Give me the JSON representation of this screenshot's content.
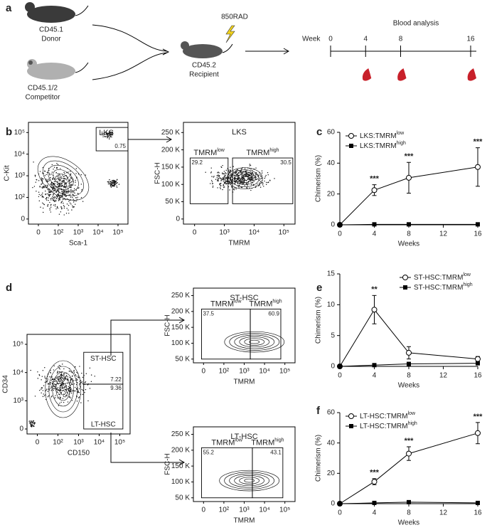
{
  "figure": {
    "panel_labels": [
      "a",
      "b",
      "c",
      "d",
      "e",
      "f"
    ],
    "schematic": {
      "donor": "CD45.1",
      "donor_role": "Donor",
      "competitor": "CD45.1/2",
      "competitor_role": "Competitor",
      "dose": "850RAD",
      "recipient": "CD45.2",
      "recipient_role": "Recipient",
      "timeline_title": "Blood analysis",
      "timeline_unit": "Week",
      "timeline_weeks": [
        0,
        4,
        8,
        16
      ]
    },
    "flow_plots": [
      {
        "x_label": "Sca-1",
        "y_label": "C-Kit",
        "xticks": [
          "0",
          "10²",
          "10³",
          "10⁴",
          "10⁵"
        ],
        "yticks": [
          "0",
          "10²",
          "10³",
          "10⁴",
          "10⁵"
        ],
        "gates": [
          {
            "name": "LKS",
            "value": 0.75
          }
        ]
      },
      {
        "title": "LKS",
        "x_label": "TMRM",
        "y_label": "FSC-H",
        "xticks": [
          "0",
          "10³",
          "10⁴",
          "10⁵"
        ],
        "yticks": [
          "0",
          "50 K",
          "100 K",
          "150 K",
          "200 K",
          "250 K"
        ],
        "gates": [
          {
            "name": "TMRM",
            "name_superscript": "low",
            "value": 29.2
          },
          {
            "name": "TMRM",
            "name_superscript": "high",
            "value": 30.5
          }
        ]
      },
      {
        "x_label": "CD150",
        "y_label": "CD34",
        "xticks": [
          "0",
          "10²",
          "10³",
          "10⁴",
          "10⁵"
        ],
        "yticks": [
          "0",
          "10³",
          "10⁴",
          "10⁵"
        ],
        "gates": [
          {
            "name": "ST-HSC",
            "value": 7.22
          },
          {
            "name": "LT-HSC",
            "value": 9.36
          }
        ]
      },
      {
        "title": "ST-HSC",
        "x_label": "TMRM",
        "y_label": "FSC-H",
        "xticks": [
          "0",
          "10²",
          "10³",
          "10⁴",
          "10⁵"
        ],
        "yticks": [
          "50 K",
          "100 K",
          "150 K",
          "200 K",
          "250 K"
        ],
        "gates": [
          {
            "name": "TMRM",
            "name_superscript": "low",
            "value": 37.5
          },
          {
            "name": "TMRM",
            "name_superscript": "high",
            "value": 60.9
          }
        ]
      },
      {
        "title": "LT-HSC",
        "x_label": "TMRM",
        "y_label": "FSC-H",
        "xticks": [
          "0",
          "10²",
          "10³",
          "10⁴",
          "10⁵"
        ],
        "yticks": [
          "50 K",
          "100 K",
          "150 K",
          "200 K",
          "250 K"
        ],
        "gates": [
          {
            "name": "TMRM",
            "name_superscript": "low",
            "value": 55.2
          },
          {
            "name": "TMRM",
            "name_superscript": "high",
            "value": 43.1
          }
        ]
      }
    ]
  },
  "chart_data": [
    {
      "type": "line",
      "x_label": "Weeks",
      "y_label": "Chimerism (%)",
      "legend": "upper left",
      "x": [
        0,
        4,
        8,
        16
      ],
      "xlim": [
        0,
        16
      ],
      "xticks": [
        0,
        4,
        8,
        12,
        16
      ],
      "ylim": [
        0,
        60
      ],
      "yticks": [
        0,
        20,
        40,
        60
      ],
      "series": [
        {
          "name": "LKS:TMRM",
          "name_superscript": "low",
          "color": "#000000",
          "marker": "circle-open",
          "values": [
            0,
            22.5,
            30.5,
            37.5
          ],
          "errors": [
            0,
            3.5,
            10,
            12.5
          ],
          "significance": [
            null,
            "***",
            "***",
            "***"
          ]
        },
        {
          "name": "LKS:TMRM",
          "name_superscript": "high",
          "color": "#000000",
          "marker": "square",
          "values": [
            0,
            0.3,
            0.3,
            0.3
          ],
          "errors": [
            0,
            0.2,
            0.2,
            0.2
          ]
        }
      ]
    },
    {
      "type": "line",
      "x_label": "Weeks",
      "y_label": "Chimerism (%)",
      "legend": "upper right",
      "x": [
        0,
        4,
        8,
        16
      ],
      "xlim": [
        0,
        16
      ],
      "xticks": [
        0,
        4,
        8,
        12,
        16
      ],
      "ylim": [
        0,
        15
      ],
      "yticks": [
        0,
        5,
        10,
        15
      ],
      "series": [
        {
          "name": "ST-HSC:TMRM",
          "name_superscript": "low",
          "color": "#000000",
          "marker": "circle-open",
          "values": [
            0,
            9.2,
            2.2,
            1.2
          ],
          "errors": [
            0,
            2.3,
            1,
            0.4
          ],
          "significance": [
            null,
            "**",
            null,
            null
          ]
        },
        {
          "name": "ST-HSC:TMRM",
          "name_superscript": "high",
          "color": "#000000",
          "marker": "square",
          "values": [
            0,
            0.2,
            0.4,
            0.5
          ],
          "errors": [
            0,
            0.1,
            0.1,
            0.1
          ]
        }
      ]
    },
    {
      "type": "line",
      "x_label": "Weeks",
      "y_label": "Chimerism (%)",
      "legend": "upper left",
      "x": [
        0,
        4,
        8,
        16
      ],
      "xlim": [
        0,
        16
      ],
      "xticks": [
        0,
        4,
        8,
        12,
        16
      ],
      "ylim": [
        0,
        60
      ],
      "yticks": [
        0,
        20,
        40,
        60
      ],
      "series": [
        {
          "name": "LT-HSC:TMRM",
          "name_superscript": "low",
          "color": "#000000",
          "marker": "circle-open",
          "values": [
            0,
            14.5,
            33,
            46.5
          ],
          "errors": [
            0,
            2,
            4.5,
            7
          ],
          "significance": [
            null,
            "***",
            "***",
            "***"
          ]
        },
        {
          "name": "LT-HSC:TMRM",
          "name_superscript": "high",
          "color": "#000000",
          "marker": "square",
          "values": [
            0,
            0.5,
            1,
            0.5
          ],
          "errors": [
            0,
            0.2,
            0.3,
            0.2
          ]
        }
      ]
    }
  ]
}
